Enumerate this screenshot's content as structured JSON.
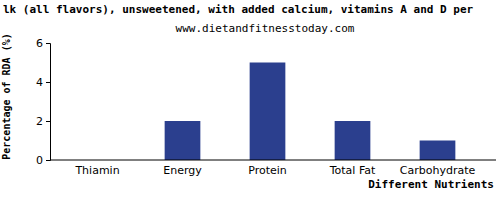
{
  "chart_data": {
    "type": "bar",
    "title": "lk (all flavors), unsweetened, with added calcium, vitamins A and D per",
    "subtitle": "www.dietandfitnesstoday.com",
    "x_label": "Different Nutrients",
    "y_label": "Percentage of RDA (%)",
    "categories": [
      "Thiamin",
      "Energy",
      "Protein",
      "Total Fat",
      "Carbohydrate"
    ],
    "values": [
      0,
      2,
      5,
      2,
      1
    ],
    "color": "#2b3f8e",
    "ylim": [
      0,
      6
    ],
    "yticks": [
      0,
      2,
      4,
      6
    ],
    "grid": false
  }
}
